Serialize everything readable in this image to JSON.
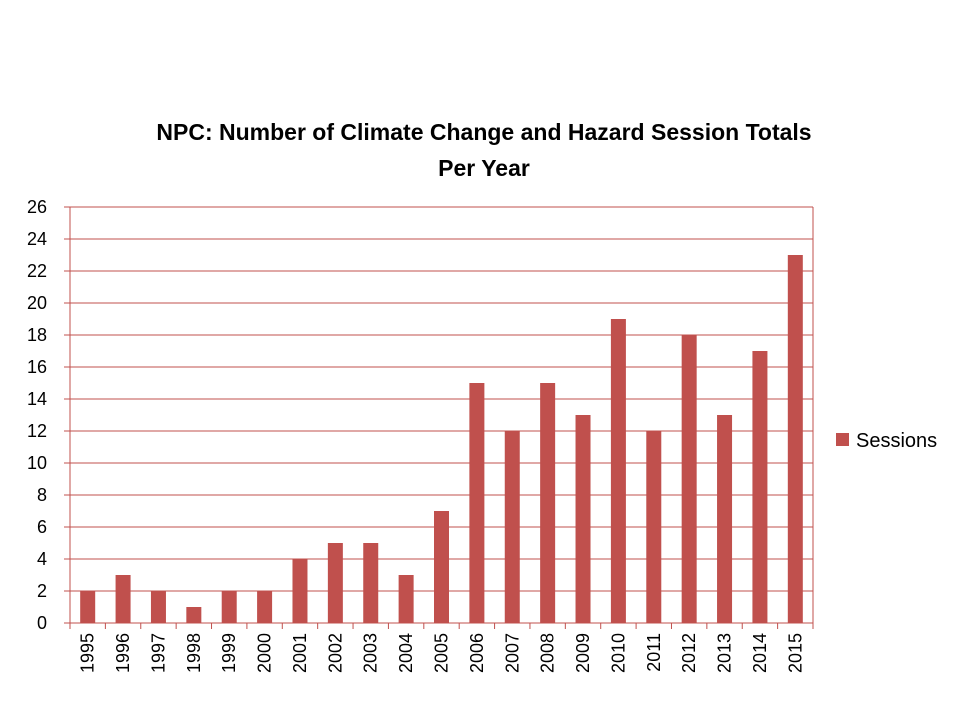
{
  "chart_data": {
    "type": "bar",
    "title_lines": [
      "NPC: Number of Climate Change and Hazard Session Totals",
      "Per Year"
    ],
    "categories": [
      "1995",
      "1996",
      "1997",
      "1998",
      "1999",
      "2000",
      "2001",
      "2002",
      "2003",
      "2004",
      "2005",
      "2006",
      "2007",
      "2008",
      "2009",
      "2010",
      "2011",
      "2012",
      "2013",
      "2014",
      "2015"
    ],
    "series": [
      {
        "name": "Sessions",
        "color": "#C0504D",
        "values": [
          2,
          3,
          2,
          1,
          2,
          2,
          4,
          5,
          5,
          3,
          7,
          15,
          12,
          15,
          13,
          19,
          12,
          18,
          13,
          17,
          23
        ]
      }
    ],
    "ylim": [
      0,
      26
    ],
    "yticks": [
      "0",
      "2",
      "4",
      "6",
      "8",
      "10",
      "12",
      "14",
      "16",
      "18",
      "20",
      "22",
      "24",
      "26"
    ],
    "grid": true,
    "grid_color": "#C0504D",
    "legend_position": "right",
    "xlabel": "",
    "ylabel": ""
  }
}
